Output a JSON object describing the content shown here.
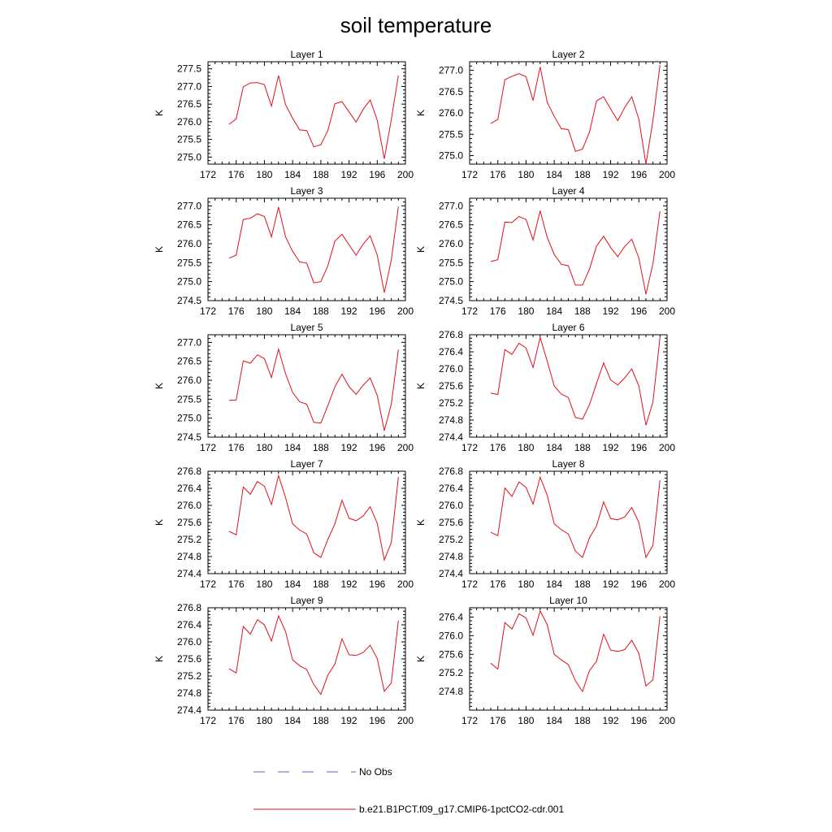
{
  "title": "soil temperature",
  "legend": {
    "items": [
      {
        "label": "No Obs",
        "color": "#5566cc",
        "dash": true
      },
      {
        "label": "b.e21.B1PCT.f09_g17.CMIP6-1pctCO2-cdr.001",
        "color": "#e0101a",
        "dash": false
      }
    ]
  },
  "colors": {
    "series": "#e0101a",
    "no_obs": "#5566cc"
  },
  "chart_data": [
    {
      "type": "line",
      "title": "Layer 1",
      "ylabel": "K",
      "xlim": [
        172,
        200
      ],
      "ylim": [
        274.8,
        277.7
      ],
      "xticks": [
        172,
        176,
        180,
        184,
        188,
        192,
        196,
        200
      ],
      "yticks": [
        275.0,
        275.5,
        276.0,
        276.5,
        277.0,
        277.5
      ],
      "series": [
        {
          "x": [
            175,
            176,
            177,
            178,
            179,
            180,
            181,
            182,
            183,
            184,
            185,
            186,
            187,
            188,
            189,
            190,
            191,
            192,
            193,
            194,
            195,
            196,
            197,
            198,
            199
          ],
          "values": [
            275.93,
            276.08,
            276.99,
            277.1,
            277.11,
            277.05,
            276.44,
            277.31,
            276.48,
            276.1,
            275.77,
            275.75,
            275.29,
            275.35,
            275.75,
            276.51,
            276.57,
            276.28,
            275.99,
            276.35,
            276.62,
            276.04,
            274.95,
            276.06,
            277.31
          ]
        }
      ]
    },
    {
      "type": "line",
      "title": "Layer 2",
      "ylabel": "K",
      "xlim": [
        172,
        200
      ],
      "ylim": [
        274.8,
        277.2
      ],
      "xticks": [
        172,
        176,
        180,
        184,
        188,
        192,
        196,
        200
      ],
      "yticks": [
        275.0,
        275.5,
        276.0,
        276.5,
        277.0
      ],
      "series": [
        {
          "x": [
            175,
            176,
            177,
            178,
            179,
            180,
            181,
            182,
            183,
            184,
            185,
            186,
            187,
            188,
            189,
            190,
            191,
            192,
            193,
            194,
            195,
            196,
            197,
            198,
            199
          ],
          "values": [
            275.75,
            275.85,
            276.78,
            276.86,
            276.92,
            276.85,
            276.29,
            277.08,
            276.25,
            275.92,
            275.63,
            275.61,
            275.1,
            275.15,
            275.55,
            276.28,
            276.38,
            276.09,
            275.82,
            276.13,
            276.38,
            275.85,
            274.8,
            275.82,
            277.12
          ]
        }
      ]
    },
    {
      "type": "line",
      "title": "Layer 3",
      "ylabel": "K",
      "xlim": [
        172,
        200
      ],
      "ylim": [
        274.5,
        277.2
      ],
      "xticks": [
        172,
        176,
        180,
        184,
        188,
        192,
        196,
        200
      ],
      "yticks": [
        274.5,
        275.0,
        275.5,
        276.0,
        276.5,
        277.0
      ],
      "series": [
        {
          "x": [
            175,
            176,
            177,
            178,
            179,
            180,
            181,
            182,
            183,
            184,
            185,
            186,
            187,
            188,
            189,
            190,
            191,
            192,
            193,
            194,
            195,
            196,
            197,
            198,
            199
          ],
          "values": [
            275.62,
            275.7,
            276.64,
            276.67,
            276.79,
            276.72,
            276.18,
            276.97,
            276.18,
            275.8,
            275.52,
            275.49,
            274.97,
            275.0,
            275.42,
            276.07,
            276.25,
            275.97,
            275.7,
            275.99,
            276.21,
            275.7,
            274.71,
            275.57,
            276.98
          ]
        }
      ]
    },
    {
      "type": "line",
      "title": "Layer 4",
      "ylabel": "K",
      "xlim": [
        172,
        200
      ],
      "ylim": [
        274.5,
        277.2
      ],
      "xticks": [
        172,
        176,
        180,
        184,
        188,
        192,
        196,
        200
      ],
      "yticks": [
        274.5,
        275.0,
        275.5,
        276.0,
        276.5,
        277.0
      ],
      "series": [
        {
          "x": [
            175,
            176,
            177,
            178,
            179,
            180,
            181,
            182,
            183,
            184,
            185,
            186,
            187,
            188,
            189,
            190,
            191,
            192,
            193,
            194,
            195,
            196,
            197,
            198,
            199
          ],
          "values": [
            275.53,
            275.58,
            276.57,
            276.56,
            276.72,
            276.64,
            276.1,
            276.87,
            276.17,
            275.72,
            275.46,
            275.42,
            274.91,
            274.91,
            275.33,
            275.94,
            276.2,
            275.9,
            275.66,
            275.93,
            276.12,
            275.62,
            274.67,
            275.47,
            276.86
          ]
        }
      ]
    },
    {
      "type": "line",
      "title": "Layer 5",
      "ylabel": "K",
      "xlim": [
        172,
        200
      ],
      "ylim": [
        274.5,
        277.2
      ],
      "xticks": [
        172,
        176,
        180,
        184,
        188,
        192,
        196,
        200
      ],
      "yticks": [
        274.5,
        275.0,
        275.5,
        276.0,
        276.5,
        277.0
      ],
      "series": [
        {
          "x": [
            175,
            176,
            177,
            178,
            179,
            180,
            181,
            182,
            183,
            184,
            185,
            186,
            187,
            188,
            189,
            190,
            191,
            192,
            193,
            194,
            195,
            196,
            197,
            198,
            199
          ],
          "values": [
            275.47,
            275.48,
            276.51,
            276.45,
            276.67,
            276.57,
            276.07,
            276.82,
            276.17,
            275.68,
            275.43,
            275.37,
            274.89,
            274.87,
            275.33,
            275.83,
            276.16,
            275.83,
            275.63,
            275.87,
            276.06,
            275.6,
            274.67,
            275.37,
            276.81
          ]
        }
      ]
    },
    {
      "type": "line",
      "title": "Layer 6",
      "ylabel": "K",
      "xlim": [
        172,
        200
      ],
      "ylim": [
        274.4,
        276.8
      ],
      "xticks": [
        172,
        176,
        180,
        184,
        188,
        192,
        196,
        200
      ],
      "yticks": [
        274.4,
        274.8,
        275.2,
        275.6,
        276.0,
        276.4,
        276.8
      ],
      "series": [
        {
          "x": [
            175,
            176,
            177,
            178,
            179,
            180,
            181,
            182,
            183,
            184,
            185,
            186,
            187,
            188,
            189,
            190,
            191,
            192,
            193,
            194,
            195,
            196,
            197,
            198,
            199
          ],
          "values": [
            275.43,
            275.4,
            276.45,
            276.34,
            276.6,
            276.49,
            276.03,
            276.74,
            276.18,
            275.6,
            275.41,
            275.33,
            274.86,
            274.82,
            275.16,
            275.66,
            276.14,
            275.74,
            275.62,
            275.79,
            276.0,
            275.6,
            274.68,
            275.22,
            276.74
          ]
        }
      ]
    },
    {
      "type": "line",
      "title": "Layer 7",
      "ylabel": "K",
      "xlim": [
        172,
        200
      ],
      "ylim": [
        274.4,
        276.8
      ],
      "xticks": [
        172,
        176,
        180,
        184,
        188,
        192,
        196,
        200
      ],
      "yticks": [
        274.4,
        274.8,
        275.2,
        275.6,
        276.0,
        276.4,
        276.8
      ],
      "series": [
        {
          "x": [
            175,
            176,
            177,
            178,
            179,
            180,
            181,
            182,
            183,
            184,
            185,
            186,
            187,
            188,
            189,
            190,
            191,
            192,
            193,
            194,
            195,
            196,
            197,
            198,
            199
          ],
          "values": [
            275.39,
            275.31,
            276.43,
            276.26,
            276.56,
            276.45,
            276.02,
            276.7,
            276.18,
            275.57,
            275.42,
            275.33,
            274.89,
            274.78,
            275.2,
            275.57,
            276.12,
            275.7,
            275.64,
            275.75,
            275.97,
            275.58,
            274.72,
            275.13,
            276.66
          ]
        }
      ]
    },
    {
      "type": "line",
      "title": "Layer 8",
      "ylabel": "K",
      "xlim": [
        172,
        200
      ],
      "ylim": [
        274.4,
        276.8
      ],
      "xticks": [
        172,
        176,
        180,
        184,
        188,
        192,
        196,
        200
      ],
      "yticks": [
        274.4,
        274.8,
        275.2,
        275.6,
        276.0,
        276.4,
        276.8
      ],
      "series": [
        {
          "x": [
            175,
            176,
            177,
            178,
            179,
            180,
            181,
            182,
            183,
            184,
            185,
            186,
            187,
            188,
            189,
            190,
            191,
            192,
            193,
            194,
            195,
            196,
            197,
            198,
            199
          ],
          "values": [
            275.37,
            275.29,
            276.41,
            276.21,
            276.55,
            276.42,
            276.03,
            276.66,
            276.24,
            275.57,
            275.43,
            275.33,
            274.93,
            274.78,
            275.24,
            275.52,
            276.08,
            275.69,
            275.66,
            275.73,
            275.95,
            275.6,
            274.78,
            275.06,
            276.59
          ]
        }
      ]
    },
    {
      "type": "line",
      "title": "Layer 9",
      "ylabel": "K",
      "xlim": [
        172,
        200
      ],
      "ylim": [
        274.4,
        276.8
      ],
      "xticks": [
        172,
        176,
        180,
        184,
        188,
        192,
        196,
        200
      ],
      "yticks": [
        274.4,
        274.8,
        275.2,
        275.6,
        276.0,
        276.4,
        276.8
      ],
      "series": [
        {
          "x": [
            175,
            176,
            177,
            178,
            179,
            180,
            181,
            182,
            183,
            184,
            185,
            186,
            187,
            188,
            189,
            190,
            191,
            192,
            193,
            194,
            195,
            196,
            197,
            198,
            199
          ],
          "values": [
            275.37,
            275.27,
            276.36,
            276.18,
            276.52,
            276.4,
            276.02,
            276.61,
            276.24,
            275.58,
            275.44,
            275.35,
            275.0,
            274.77,
            275.22,
            275.48,
            276.07,
            275.7,
            275.68,
            275.75,
            275.92,
            275.61,
            274.84,
            275.04,
            276.5
          ]
        }
      ]
    },
    {
      "type": "line",
      "title": "Layer 10",
      "ylabel": "K",
      "xlim": [
        172,
        200
      ],
      "ylim": [
        274.4,
        276.6
      ],
      "xticks": [
        172,
        176,
        180,
        184,
        188,
        192,
        196,
        200
      ],
      "yticks": [
        274.8,
        275.2,
        275.6,
        276.0,
        276.4
      ],
      "series": [
        {
          "x": [
            175,
            176,
            177,
            178,
            179,
            180,
            181,
            182,
            183,
            184,
            185,
            186,
            187,
            188,
            189,
            190,
            191,
            192,
            193,
            194,
            195,
            196,
            197,
            198,
            199
          ],
          "values": [
            275.41,
            275.28,
            276.28,
            276.14,
            276.47,
            276.38,
            276.01,
            276.53,
            276.24,
            275.6,
            275.48,
            275.38,
            275.03,
            274.8,
            275.25,
            275.45,
            276.03,
            275.69,
            275.66,
            275.7,
            275.9,
            275.62,
            274.92,
            275.05,
            276.42
          ]
        }
      ]
    }
  ]
}
